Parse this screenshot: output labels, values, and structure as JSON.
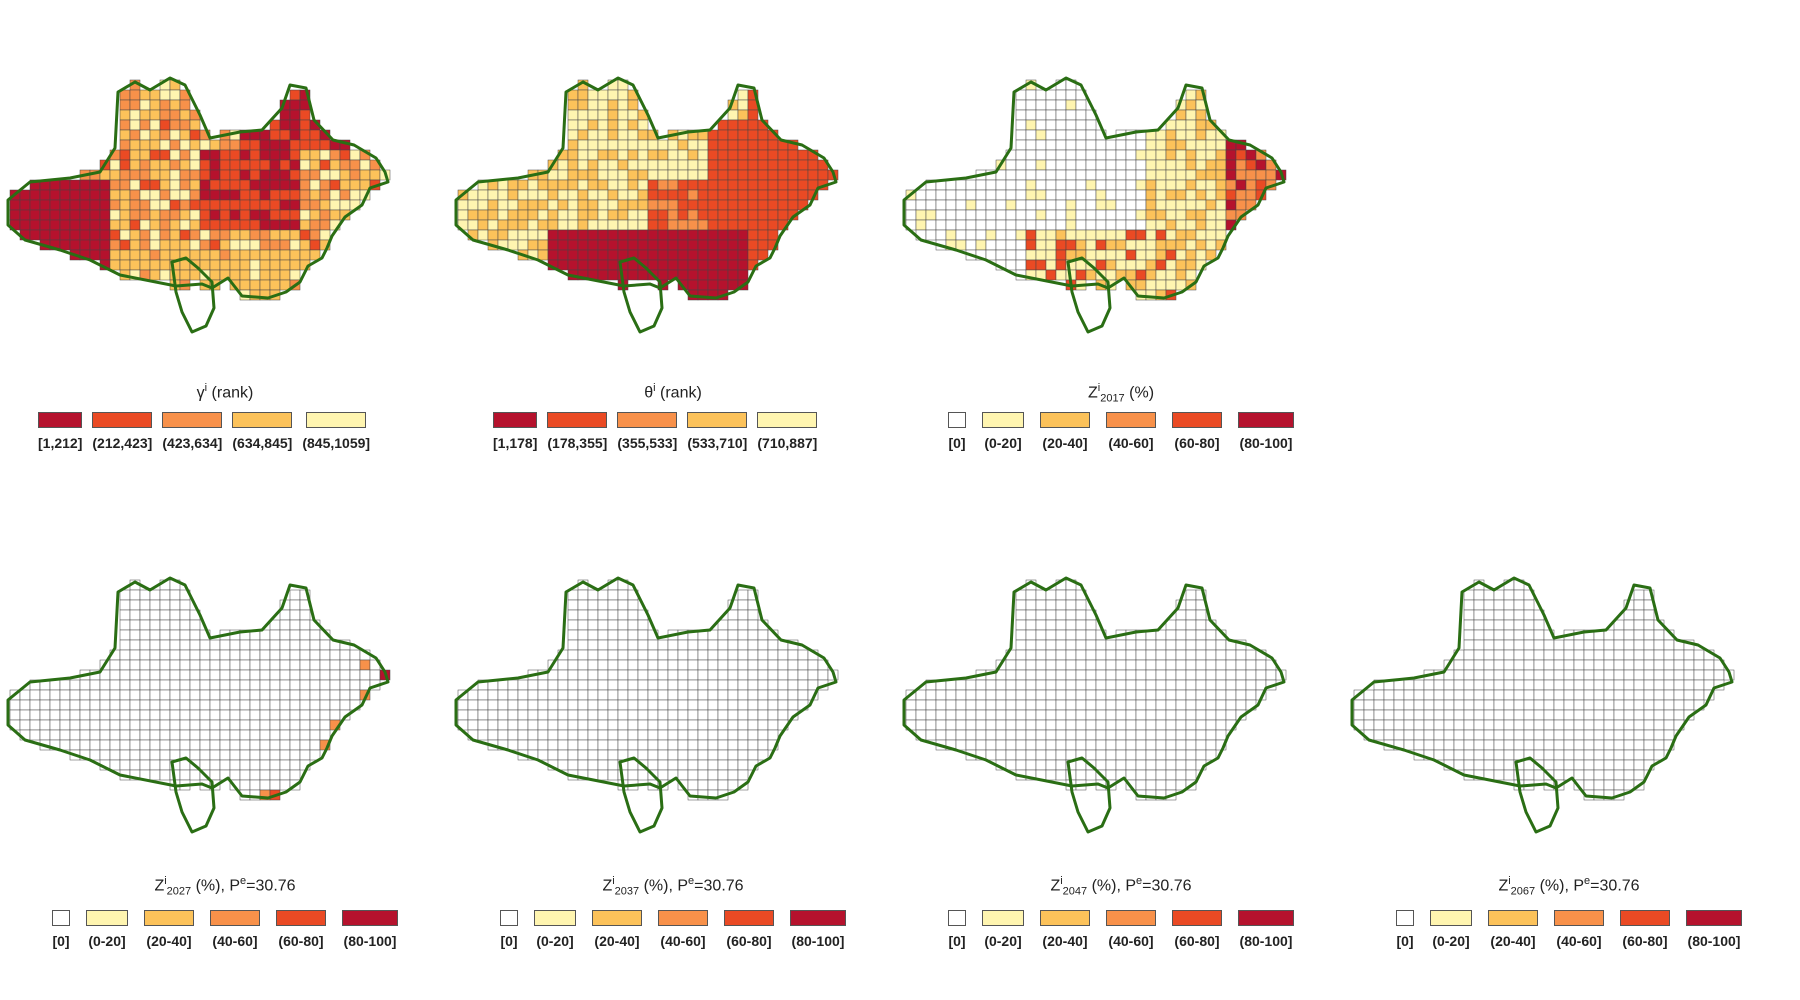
{
  "palettes": {
    "rank": [
      "#b5122d",
      "#ea4a24",
      "#f8914a",
      "#fcc25a",
      "#fff5b0"
    ],
    "pct": [
      "#ffffff",
      "#fff5b0",
      "#fcc25a",
      "#f8914a",
      "#ea4a24",
      "#b5122d"
    ]
  },
  "map_style": {
    "cell_border": "#444444",
    "boundary": "#2a6e14"
  },
  "panels": [
    {
      "id": "gamma-rank",
      "title": {
        "symbol": "γ",
        "sup": "i",
        "sub": "",
        "rest": " (rank)"
      },
      "legend": [
        "[1,212]",
        "(212,423]",
        "(423,634]",
        "(634,845]",
        "(845,1059]"
      ],
      "palette": "rank"
    },
    {
      "id": "theta-rank",
      "title": {
        "symbol": "θ",
        "sup": "i",
        "sub": "",
        "rest": " (rank)"
      },
      "legend": [
        "[1,178]",
        "(178,355]",
        "(355,533]",
        "(533,710]",
        "(710,887]"
      ],
      "palette": "rank"
    },
    {
      "id": "z-2017",
      "title": {
        "symbol": "Z",
        "sup": "i",
        "sub": "2017",
        "rest": " (%)"
      },
      "legend": [
        "[0]",
        "(0-20]",
        "(20-40]",
        "(40-60]",
        "(60-80]",
        "(80-100]"
      ],
      "palette": "pct"
    },
    {
      "id": "z-2027",
      "title": {
        "symbol": "Z",
        "sup": "i",
        "sub": "2027",
        "rest": " (%), P",
        "sup2": "e",
        "rest2": "=30.76"
      },
      "legend": [
        "[0]",
        "(0-20]",
        "(20-40]",
        "(40-60]",
        "(60-80]",
        "(80-100]"
      ],
      "palette": "pct"
    },
    {
      "id": "z-2037",
      "title": {
        "symbol": "Z",
        "sup": "i",
        "sub": "2037",
        "rest": " (%), P",
        "sup2": "e",
        "rest2": "=30.76"
      },
      "legend": [
        "[0]",
        "(0-20]",
        "(20-40]",
        "(40-60]",
        "(60-80]",
        "(80-100]"
      ],
      "palette": "pct"
    },
    {
      "id": "z-2047",
      "title": {
        "symbol": "Z",
        "sup": "i",
        "sub": "2047",
        "rest": " (%), P",
        "sup2": "e",
        "rest2": "=30.76"
      },
      "legend": [
        "[0]",
        "(0-20]",
        "(20-40]",
        "(40-60]",
        "(60-80]",
        "(80-100]"
      ],
      "palette": "pct"
    },
    {
      "id": "z-2067",
      "title": {
        "symbol": "Z",
        "sup": "i",
        "sub": "2067",
        "rest": " (%), P",
        "sup2": "e",
        "rest2": "=30.76"
      },
      "legend": [
        "[0]",
        "(0-20]",
        "(20-40]",
        "(40-60]",
        "(60-80]",
        "(80-100]"
      ],
      "palette": "pct"
    }
  ]
}
